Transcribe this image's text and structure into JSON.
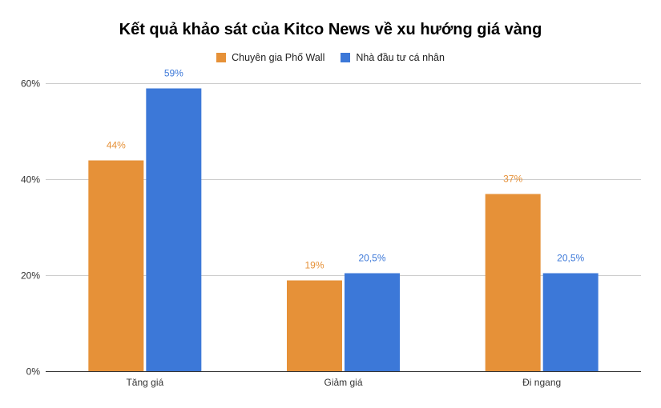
{
  "chart_data": {
    "type": "bar",
    "title": "Kết quả khảo sát của Kitco News về xu hướng giá vàng",
    "categories": [
      "Tăng giá",
      "Giảm giá",
      "Đi ngang"
    ],
    "series": [
      {
        "name": "Chuyên gia Phố Wall",
        "values": [
          44,
          19,
          37
        ],
        "labels": [
          "44%",
          "19%",
          "37%"
        ],
        "color": "#E69138"
      },
      {
        "name": "Nhà đầu tư cá nhân",
        "values": [
          59,
          20.5,
          20.5
        ],
        "labels": [
          "59%",
          "20,5%",
          "20,5%"
        ],
        "color": "#3C78D8"
      }
    ],
    "ylim": [
      0,
      60
    ],
    "yticks": [
      0,
      20,
      40,
      60
    ],
    "ytick_labels": [
      "0%",
      "20%",
      "40%",
      "60%"
    ],
    "xlabel": "",
    "ylabel": "",
    "grid": true,
    "legend_position": "top-center",
    "colors": {
      "gridline": "#CCCCCC",
      "baseline": "#333333"
    }
  }
}
